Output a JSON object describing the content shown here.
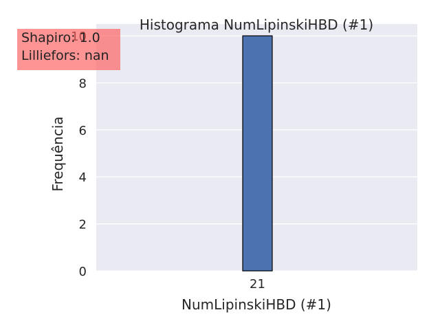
{
  "chart_data": {
    "type": "bar",
    "title": "Histograma NumLipinskiHBD (#1)",
    "xlabel": "NumLipinskiHBD (#1)",
    "ylabel": "Frequência",
    "categories": [
      "21"
    ],
    "values": [
      10
    ],
    "ylim": [
      0,
      10.5
    ],
    "yticks": [
      "0",
      "2",
      "4",
      "6",
      "8",
      "10"
    ],
    "grid": true,
    "colors": {
      "bar": "#4c72b0",
      "bar_edge": "#000000",
      "plot_background": "#eaeaf2",
      "grid": "#ffffff"
    }
  },
  "annotation": {
    "shapiro": "Shapiro: 1.0",
    "lilliefors": "Lilliefors: nan",
    "color": "#ff5a5a"
  }
}
